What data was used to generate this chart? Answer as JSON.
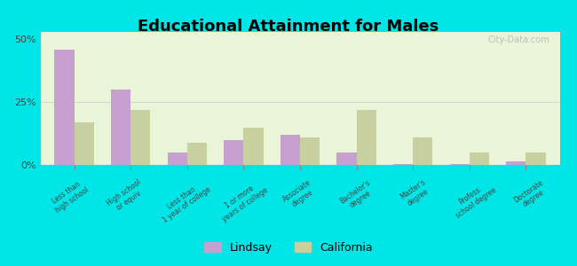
{
  "title": "Educational Attainment for Males",
  "categories": [
    "Less than\nhigh school",
    "High school\nor equiv.",
    "Less than\n1 year of college",
    "1 or more\nyears of college",
    "Associate\ndegree",
    "Bachelor's\ndegree",
    "Master's\ndegree",
    "Profess.\nschool degree",
    "Doctorate\ndegree"
  ],
  "lindsay_values": [
    46,
    30,
    5,
    10,
    12,
    5,
    0.5,
    0.5,
    1.5
  ],
  "california_values": [
    17,
    22,
    9,
    15,
    11,
    22,
    11,
    5,
    5
  ],
  "lindsay_color": "#c8a0d0",
  "california_color": "#c8d0a0",
  "background_color": "#e8f5d8",
  "outer_background": "#00e5e5",
  "yticks": [
    0,
    25,
    50
  ],
  "ylim": [
    0,
    53
  ],
  "legend_labels": [
    "Lindsay",
    "California"
  ],
  "watermark": "City-Data.com"
}
